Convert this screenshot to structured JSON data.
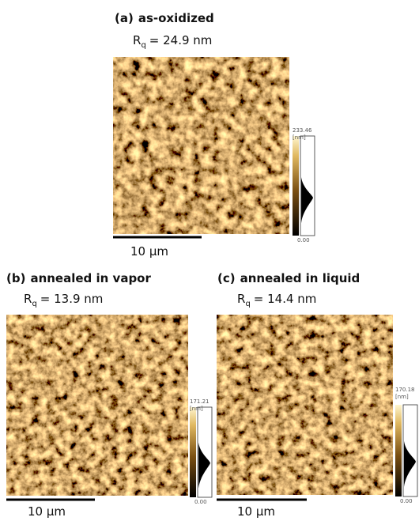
{
  "panels": [
    {
      "label": "(a)",
      "title": "as-oxidized",
      "rq": {
        "symbol": "R",
        "subscript": "q",
        "value": "= 24.9 nm"
      },
      "colorbar": {
        "max": "233.46",
        "unit": "[nm]",
        "min": "0.00"
      },
      "scale_bar": "10 μm"
    },
    {
      "label": "(b)",
      "title": "annealed in vapor",
      "rq": {
        "symbol": "R",
        "subscript": "q",
        "value": "= 13.9 nm"
      },
      "colorbar": {
        "max": "171.21",
        "unit": "[nm]",
        "min": "0.00"
      },
      "scale_bar": "10 μm"
    },
    {
      "label": "(c)",
      "title": "annealed in liquid",
      "rq": {
        "symbol": "R",
        "subscript": "q",
        "value": "= 14.4 nm"
      },
      "colorbar": {
        "max": "170.18",
        "unit": "[nm]",
        "min": "0.00"
      },
      "scale_bar": "10 μm"
    }
  ]
}
